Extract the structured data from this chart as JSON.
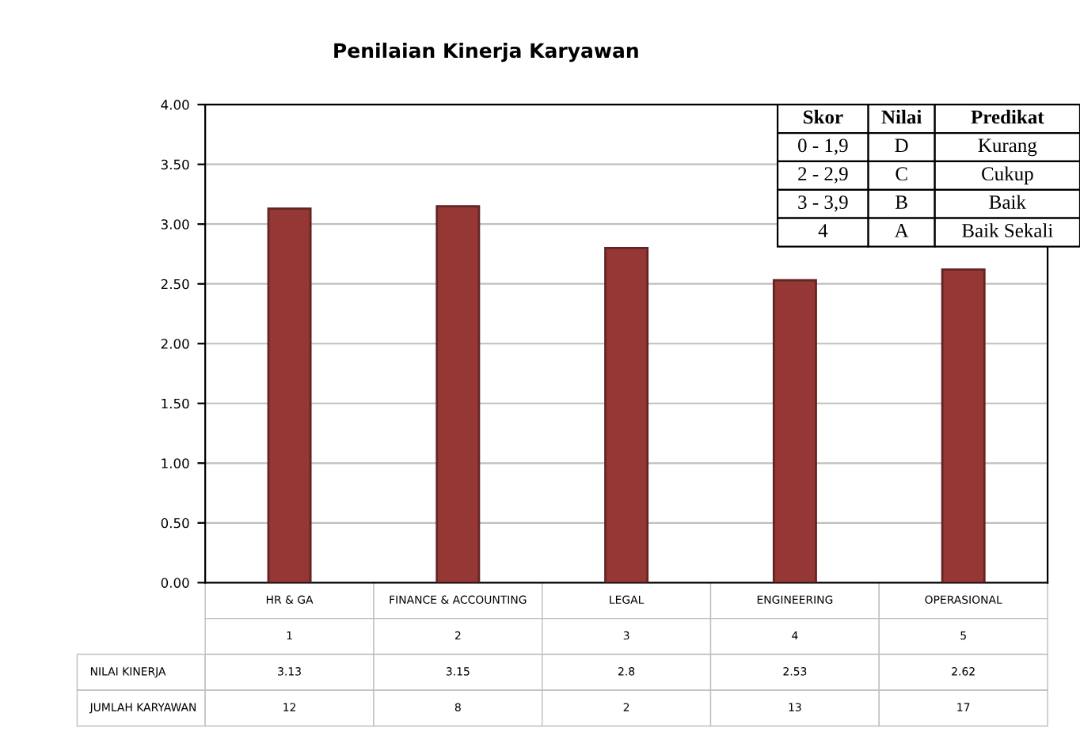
{
  "chart_data": {
    "type": "bar",
    "title": "Penilaian Kinerja Karyawan",
    "categories": [
      "HR & GA",
      "FINANCE & ACCOUNTING",
      "LEGAL",
      "ENGINEERING",
      "OPERASIONAL"
    ],
    "series": [
      {
        "name": "NILAI KINERJA",
        "color": "#953735",
        "values": [
          3.13,
          3.15,
          2.8,
          2.53,
          2.62
        ]
      }
    ],
    "data_labels": true,
    "ylim": [
      0,
      4
    ],
    "yticks": [
      {
        "value": 0,
        "label": "0.00"
      },
      {
        "value": 0.5,
        "label": "0.50"
      },
      {
        "value": 1,
        "label": "1.00"
      },
      {
        "value": 1.5,
        "label": "1.50"
      },
      {
        "value": 2,
        "label": "2.00"
      },
      {
        "value": 2.5,
        "label": "2.50"
      },
      {
        "value": 3,
        "label": "3.00"
      },
      {
        "value": 3.5,
        "label": "3.50"
      },
      {
        "value": 4,
        "label": "4.00"
      }
    ],
    "grid": "y",
    "legend": false,
    "annotations": [
      "1",
      "2",
      "3",
      "4",
      "5",
      "JUMLAH KARYAWAN",
      "12",
      "8",
      "2",
      "13",
      "17",
      "Skor",
      "Nilai",
      "Predikat",
      "0 - 1,9",
      "D",
      "Kurang",
      "2 - 2,9",
      "C",
      "Cukup",
      "3 - 3,9",
      "B",
      "Baik",
      "4",
      "A",
      "Baik Sekali"
    ]
  }
}
